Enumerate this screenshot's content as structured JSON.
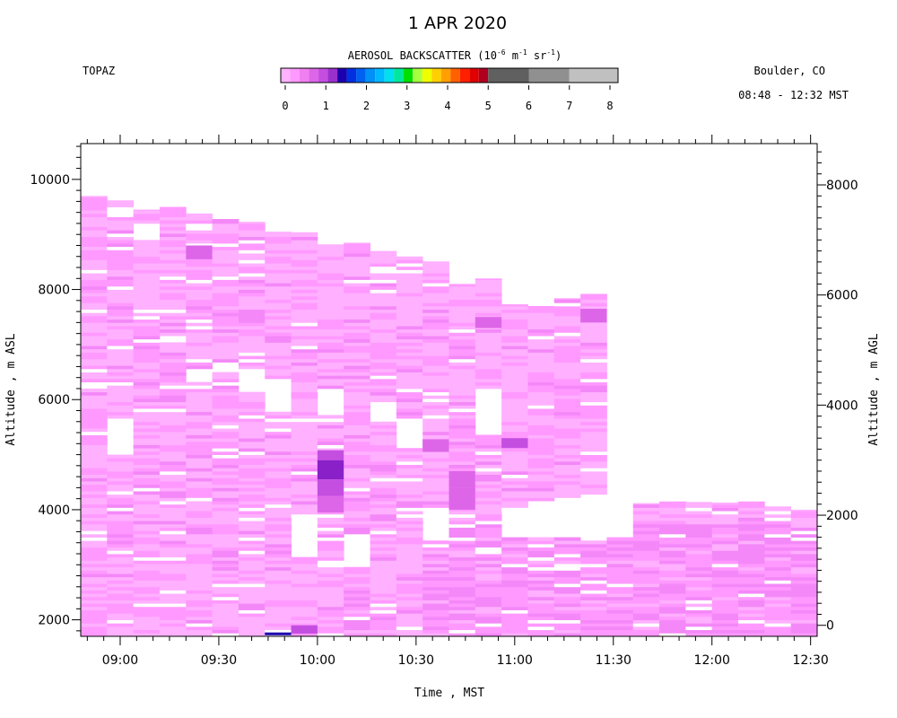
{
  "title": "1 APR 2020",
  "station": "TOPAZ",
  "location": "Boulder, CO",
  "time_range": "08:48 - 12:32 MST",
  "colorbar": {
    "label_prefix": "AEROSOL BACKSCATTER (10",
    "exp1": "-6",
    "mid1": " m",
    "exp2": "-1",
    "mid2": " sr",
    "exp3": "-1",
    "suffix": ")",
    "colors": [
      "#ffb3ff",
      "#ff99ff",
      "#f080f0",
      "#dd66e8",
      "#c44ee0",
      "#9a30cc",
      "#1c00b0",
      "#0030e0",
      "#0060f0",
      "#0090f8",
      "#00b8ff",
      "#00e0f0",
      "#00e8a0",
      "#00e000",
      "#a8ff40",
      "#f0ff00",
      "#ffd000",
      "#ffa000",
      "#ff6000",
      "#ff2000",
      "#e00000",
      "#b00020",
      "#606060",
      "#909090",
      "#c0c0c0"
    ],
    "ticks": [
      "0",
      "1",
      "2",
      "3",
      "4",
      "5",
      "6",
      "7",
      "8"
    ]
  },
  "chart_data": {
    "type": "heatmap",
    "xlabel": "Time , MST",
    "ylabel_left": "Altitude , m ASL",
    "ylabel_right": "Altitude , m AGL",
    "x_ticks": [
      "09:00",
      "09:30",
      "10:00",
      "10:30",
      "11:00",
      "11:30",
      "12:00",
      "12:30"
    ],
    "y_ticks_left": [
      "2000",
      "4000",
      "6000",
      "8000",
      "10000"
    ],
    "y_ticks_right": [
      "0",
      "2000",
      "4000",
      "6000",
      "8000"
    ],
    "xlim_minutes": [
      528,
      752
    ],
    "ylim_asl": [
      1700,
      10650
    ],
    "y2_offset": 1900,
    "profile_start_times": [
      528,
      536,
      544,
      552,
      560,
      568,
      576,
      584,
      592,
      600,
      608,
      616,
      624,
      632,
      640,
      648,
      656,
      664,
      672,
      680,
      688,
      696,
      704,
      712,
      720,
      728,
      736,
      744
    ],
    "profile_tops": [
      9700,
      9620,
      9450,
      9500,
      9380,
      9280,
      9230,
      9050,
      9040,
      8820,
      8850,
      8700,
      8600,
      8510,
      8100,
      8200,
      7730,
      7700,
      7840,
      7920,
      4050,
      4120,
      4150,
      4140,
      4130,
      4150,
      4060,
      4000
    ],
    "gaps": [
      [
        6200,
        6350
      ],
      [
        5000,
        5700
      ],
      [
        8900,
        9200
      ],
      [
        7000,
        7200
      ],
      [
        6300,
        6600
      ],
      [
        6450,
        6700
      ],
      [
        6100,
        6500
      ],
      [
        5750,
        6400
      ],
      [
        3100,
        3900
      ],
      [
        5700,
        6150
      ],
      [
        2950,
        3600
      ],
      [
        5600,
        6000
      ],
      [
        5100,
        5700
      ],
      [
        3400,
        4050
      ],
      [
        3500,
        3500
      ],
      [
        5350,
        6200
      ],
      [
        3500,
        4000
      ],
      [
        3500,
        4200
      ],
      [
        3450,
        4250
      ],
      [
        3400,
        4300
      ],
      [
        3450,
        4350
      ]
    ],
    "enhanced_regions": [
      {
        "t": 560,
        "y0": 8550,
        "y1": 8800,
        "level": 3
      },
      {
        "t": 600,
        "y0": 4900,
        "y1": 5080,
        "level": 4
      },
      {
        "t": 600,
        "y0": 4550,
        "y1": 4900,
        "level": 5
      },
      {
        "t": 600,
        "y0": 4250,
        "y1": 4550,
        "level": 4
      },
      {
        "t": 600,
        "y0": 3950,
        "y1": 4250,
        "level": 3
      },
      {
        "t": 640,
        "y0": 4400,
        "y1": 4700,
        "level": 3
      },
      {
        "t": 640,
        "y0": 4000,
        "y1": 4400,
        "level": 3
      },
      {
        "t": 632,
        "y0": 5050,
        "y1": 5280,
        "level": 3
      },
      {
        "t": 656,
        "y0": 5120,
        "y1": 5300,
        "level": 4
      },
      {
        "t": 648,
        "y0": 7300,
        "y1": 7500,
        "level": 3
      },
      {
        "t": 680,
        "y0": 7400,
        "y1": 7650,
        "level": 3
      },
      {
        "t": 592,
        "y0": 1750,
        "y1": 1900,
        "level": 4
      },
      {
        "t": 584,
        "y0": 1720,
        "y1": 1770,
        "level": 6
      }
    ]
  }
}
